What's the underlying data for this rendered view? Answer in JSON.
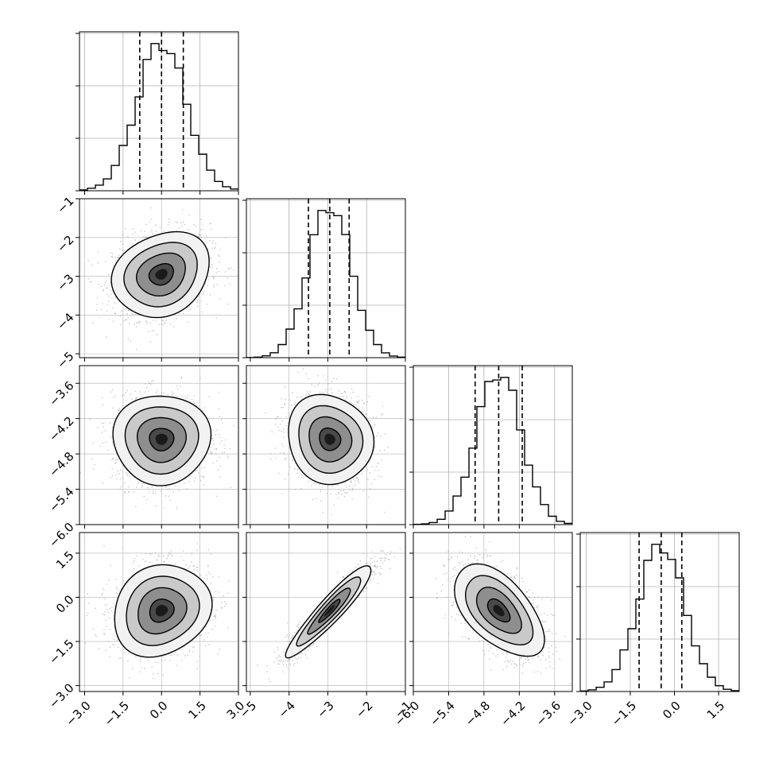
{
  "chart_data": {
    "type": "corner",
    "parameters": [
      {
        "ticks": [
          -3.0,
          -1.5,
          0.0,
          1.5,
          3.0
        ],
        "tick_labels": [
          "−3.0",
          "−1.5",
          "0.0",
          "1.5",
          "3.0"
        ],
        "range": [
          -3.2,
          3.0
        ]
      },
      {
        "ticks": [
          -5,
          -4,
          -3,
          -2,
          -1
        ],
        "tick_labels": [
          "−5",
          "−4",
          "−3",
          "−2",
          "−1"
        ],
        "range": [
          -5.1,
          -1.0
        ]
      },
      {
        "ticks": [
          -6.0,
          -5.4,
          -4.8,
          -4.2,
          -3.6
        ],
        "tick_labels": [
          "−6.0",
          "−5.4",
          "−4.8",
          "−4.2",
          "−3.6"
        ],
        "range": [
          -6.0,
          -3.3
        ]
      },
      {
        "ticks": [
          -3.0,
          -1.5,
          0.0,
          1.5
        ],
        "tick_labels": [
          "−3.0",
          "−1.5",
          "0.0",
          "1.5"
        ],
        "range": [
          -3.2,
          2.2
        ]
      }
    ],
    "parameter_stats": [
      {
        "mean": 0.0,
        "sd": 0.95
      },
      {
        "mean": -2.95,
        "sd": 0.55
      },
      {
        "mean": -4.55,
        "sd": 0.38
      },
      {
        "mean": -0.45,
        "sd": 0.78
      }
    ],
    "quantiles": [
      [
        -0.85,
        0.0,
        0.85
      ],
      [
        -3.5,
        -2.95,
        -2.45
      ],
      [
        -4.95,
        -4.55,
        -4.15
      ],
      [
        -1.2,
        -0.45,
        0.25
      ]
    ],
    "correlations": [
      {
        "i": 1,
        "j": 0,
        "rho": 0.2
      },
      {
        "i": 2,
        "j": 0,
        "rho": 0.0
      },
      {
        "i": 2,
        "j": 1,
        "rho": -0.1
      },
      {
        "i": 3,
        "j": 0,
        "rho": 0.15
      },
      {
        "i": 3,
        "j": 1,
        "rho": 0.93
      },
      {
        "i": 3,
        "j": 2,
        "rho": -0.55
      }
    ],
    "histogram_bins": 20,
    "contour_levels_sigma": [
      0.5,
      1.0,
      1.5,
      2.0
    ],
    "grid": true,
    "colors": {
      "line": "#000000",
      "grid": "#b0b0b0",
      "points": "#9a9a9a",
      "frame": "#000000"
    }
  }
}
